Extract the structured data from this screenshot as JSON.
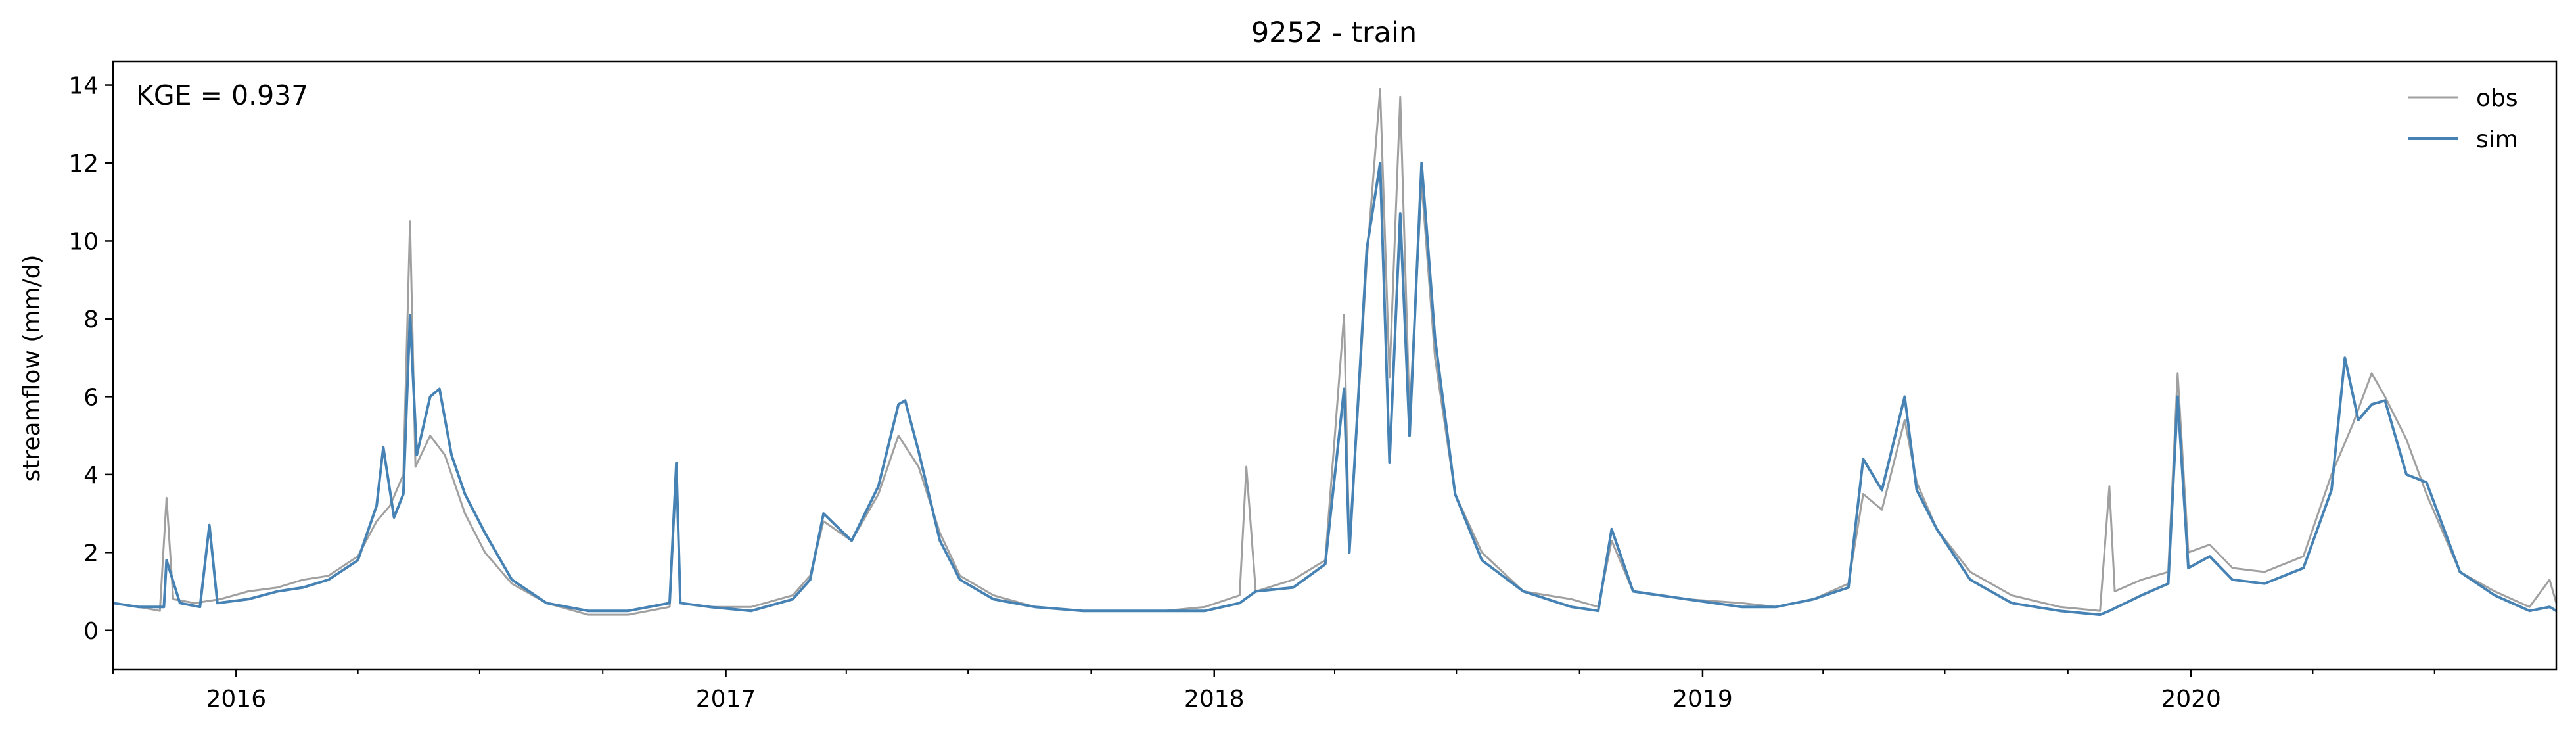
{
  "chart_data": {
    "type": "line",
    "title": "9252 - train",
    "xlabel": "",
    "ylabel": "streamflow (mm/d)",
    "xlim": [
      "2015-10-01",
      "2020-09-30"
    ],
    "ylim": [
      -1,
      14.6
    ],
    "yticks": [
      0,
      2,
      4,
      6,
      8,
      10,
      12,
      14
    ],
    "xticks": [
      {
        "date": "2016-01-01",
        "label": "2016"
      },
      {
        "date": "2017-01-01",
        "label": "2017"
      },
      {
        "date": "2018-01-01",
        "label": "2018"
      },
      {
        "date": "2019-01-01",
        "label": "2019"
      },
      {
        "date": "2020-01-01",
        "label": "2020"
      }
    ],
    "grid": false,
    "legend": "top-right",
    "annotation": "KGE = 0.937",
    "series": [
      {
        "name": "obs",
        "color": "#a0a0a0",
        "points": [
          [
            "2015-10-01",
            0.7
          ],
          [
            "2015-10-20",
            0.6
          ],
          [
            "2015-11-05",
            0.5
          ],
          [
            "2015-11-10",
            3.4
          ],
          [
            "2015-11-15",
            0.8
          ],
          [
            "2015-12-01",
            0.7
          ],
          [
            "2015-12-20",
            0.8
          ],
          [
            "2016-01-10",
            1.0
          ],
          [
            "2016-02-01",
            1.1
          ],
          [
            "2016-02-20",
            1.3
          ],
          [
            "2016-03-10",
            1.4
          ],
          [
            "2016-04-01",
            1.9
          ],
          [
            "2016-04-15",
            2.8
          ],
          [
            "2016-04-25",
            3.2
          ],
          [
            "2016-05-05",
            4.0
          ],
          [
            "2016-05-10",
            10.5
          ],
          [
            "2016-05-14",
            4.2
          ],
          [
            "2016-05-25",
            5.0
          ],
          [
            "2016-06-05",
            4.5
          ],
          [
            "2016-06-20",
            3.0
          ],
          [
            "2016-07-05",
            2.0
          ],
          [
            "2016-07-25",
            1.2
          ],
          [
            "2016-08-20",
            0.7
          ],
          [
            "2016-09-20",
            0.4
          ],
          [
            "2016-10-20",
            0.4
          ],
          [
            "2016-11-20",
            0.6
          ],
          [
            "2016-11-25",
            4.1
          ],
          [
            "2016-11-28",
            0.7
          ],
          [
            "2016-12-20",
            0.6
          ],
          [
            "2017-01-20",
            0.6
          ],
          [
            "2017-02-20",
            0.9
          ],
          [
            "2017-03-05",
            1.4
          ],
          [
            "2017-03-15",
            2.8
          ],
          [
            "2017-04-05",
            2.3
          ],
          [
            "2017-04-25",
            3.5
          ],
          [
            "2017-05-10",
            5.0
          ],
          [
            "2017-05-25",
            4.2
          ],
          [
            "2017-06-10",
            2.5
          ],
          [
            "2017-06-25",
            1.4
          ],
          [
            "2017-07-20",
            0.9
          ],
          [
            "2017-08-20",
            0.6
          ],
          [
            "2017-09-25",
            0.5
          ],
          [
            "2017-10-25",
            0.5
          ],
          [
            "2017-11-25",
            0.5
          ],
          [
            "2017-12-25",
            0.6
          ],
          [
            "2018-01-20",
            0.9
          ],
          [
            "2018-01-25",
            4.2
          ],
          [
            "2018-02-01",
            1.0
          ],
          [
            "2018-03-01",
            1.3
          ],
          [
            "2018-03-25",
            1.8
          ],
          [
            "2018-04-08",
            8.1
          ],
          [
            "2018-04-12",
            2.0
          ],
          [
            "2018-04-25",
            9.5
          ],
          [
            "2018-05-05",
            13.9
          ],
          [
            "2018-05-12",
            6.5
          ],
          [
            "2018-05-20",
            13.7
          ],
          [
            "2018-05-27",
            5.5
          ],
          [
            "2018-06-05",
            11.5
          ],
          [
            "2018-06-15",
            7.0
          ],
          [
            "2018-06-30",
            3.5
          ],
          [
            "2018-07-20",
            2.0
          ],
          [
            "2018-08-20",
            1.0
          ],
          [
            "2018-09-25",
            0.8
          ],
          [
            "2018-10-15",
            0.6
          ],
          [
            "2018-10-25",
            2.3
          ],
          [
            "2018-11-10",
            1.0
          ],
          [
            "2018-12-20",
            0.8
          ],
          [
            "2019-01-30",
            0.7
          ],
          [
            "2019-02-25",
            0.6
          ],
          [
            "2019-03-25",
            0.8
          ],
          [
            "2019-04-20",
            1.2
          ],
          [
            "2019-05-01",
            3.5
          ],
          [
            "2019-05-15",
            3.1
          ],
          [
            "2019-06-01",
            5.4
          ],
          [
            "2019-06-10",
            3.8
          ],
          [
            "2019-06-25",
            2.6
          ],
          [
            "2019-07-20",
            1.5
          ],
          [
            "2019-08-20",
            0.9
          ],
          [
            "2019-09-25",
            0.6
          ],
          [
            "2019-10-25",
            0.5
          ],
          [
            "2019-11-01",
            3.7
          ],
          [
            "2019-11-05",
            1.0
          ],
          [
            "2019-11-25",
            1.3
          ],
          [
            "2019-12-15",
            1.5
          ],
          [
            "2019-12-22",
            6.6
          ],
          [
            "2019-12-30",
            2.0
          ],
          [
            "2020-01-15",
            2.2
          ],
          [
            "2020-02-01",
            1.6
          ],
          [
            "2020-02-25",
            1.5
          ],
          [
            "2020-03-25",
            1.9
          ],
          [
            "2020-04-15",
            4.0
          ],
          [
            "2020-05-01",
            5.3
          ],
          [
            "2020-05-15",
            6.6
          ],
          [
            "2020-05-25",
            6.0
          ],
          [
            "2020-06-10",
            4.9
          ],
          [
            "2020-06-25",
            3.5
          ],
          [
            "2020-07-20",
            1.5
          ],
          [
            "2020-08-15",
            1.0
          ],
          [
            "2020-09-10",
            0.6
          ],
          [
            "2020-09-25",
            1.3
          ],
          [
            "2020-09-30",
            0.7
          ]
        ]
      },
      {
        "name": "sim",
        "color": "#4682b4",
        "points": [
          [
            "2015-10-01",
            0.7
          ],
          [
            "2015-10-20",
            0.6
          ],
          [
            "2015-11-08",
            0.6
          ],
          [
            "2015-11-10",
            1.8
          ],
          [
            "2015-11-20",
            0.7
          ],
          [
            "2015-12-05",
            0.6
          ],
          [
            "2015-12-12",
            2.7
          ],
          [
            "2015-12-18",
            0.7
          ],
          [
            "2016-01-10",
            0.8
          ],
          [
            "2016-02-01",
            1.0
          ],
          [
            "2016-02-20",
            1.1
          ],
          [
            "2016-03-10",
            1.3
          ],
          [
            "2016-04-01",
            1.8
          ],
          [
            "2016-04-15",
            3.2
          ],
          [
            "2016-04-20",
            4.7
          ],
          [
            "2016-04-28",
            2.9
          ],
          [
            "2016-05-05",
            3.5
          ],
          [
            "2016-05-10",
            8.1
          ],
          [
            "2016-05-15",
            4.5
          ],
          [
            "2016-05-25",
            6.0
          ],
          [
            "2016-06-01",
            6.2
          ],
          [
            "2016-06-10",
            4.5
          ],
          [
            "2016-06-20",
            3.5
          ],
          [
            "2016-07-05",
            2.5
          ],
          [
            "2016-07-25",
            1.3
          ],
          [
            "2016-08-20",
            0.7
          ],
          [
            "2016-09-20",
            0.5
          ],
          [
            "2016-10-20",
            0.5
          ],
          [
            "2016-11-20",
            0.7
          ],
          [
            "2016-11-25",
            4.3
          ],
          [
            "2016-11-28",
            0.7
          ],
          [
            "2016-12-20",
            0.6
          ],
          [
            "2017-01-20",
            0.5
          ],
          [
            "2017-02-20",
            0.8
          ],
          [
            "2017-03-05",
            1.3
          ],
          [
            "2017-03-15",
            3.0
          ],
          [
            "2017-04-05",
            2.3
          ],
          [
            "2017-04-25",
            3.7
          ],
          [
            "2017-05-10",
            5.8
          ],
          [
            "2017-05-15",
            5.9
          ],
          [
            "2017-05-25",
            4.6
          ],
          [
            "2017-06-10",
            2.3
          ],
          [
            "2017-06-25",
            1.3
          ],
          [
            "2017-07-20",
            0.8
          ],
          [
            "2017-08-20",
            0.6
          ],
          [
            "2017-09-25",
            0.5
          ],
          [
            "2017-10-25",
            0.5
          ],
          [
            "2017-11-25",
            0.5
          ],
          [
            "2017-12-25",
            0.5
          ],
          [
            "2018-01-20",
            0.7
          ],
          [
            "2018-02-01",
            1.0
          ],
          [
            "2018-03-01",
            1.1
          ],
          [
            "2018-03-25",
            1.7
          ],
          [
            "2018-04-08",
            6.2
          ],
          [
            "2018-04-12",
            2.0
          ],
          [
            "2018-04-25",
            9.8
          ],
          [
            "2018-05-05",
            12.0
          ],
          [
            "2018-05-12",
            4.3
          ],
          [
            "2018-05-20",
            10.7
          ],
          [
            "2018-05-27",
            5.0
          ],
          [
            "2018-06-05",
            12.0
          ],
          [
            "2018-06-15",
            7.5
          ],
          [
            "2018-06-30",
            3.5
          ],
          [
            "2018-07-20",
            1.8
          ],
          [
            "2018-08-20",
            1.0
          ],
          [
            "2018-09-25",
            0.6
          ],
          [
            "2018-10-15",
            0.5
          ],
          [
            "2018-10-25",
            2.6
          ],
          [
            "2018-11-10",
            1.0
          ],
          [
            "2018-12-20",
            0.8
          ],
          [
            "2019-01-30",
            0.6
          ],
          [
            "2019-02-25",
            0.6
          ],
          [
            "2019-03-25",
            0.8
          ],
          [
            "2019-04-20",
            1.1
          ],
          [
            "2019-05-01",
            4.4
          ],
          [
            "2019-05-15",
            3.6
          ],
          [
            "2019-06-01",
            6.0
          ],
          [
            "2019-06-10",
            3.6
          ],
          [
            "2019-06-25",
            2.6
          ],
          [
            "2019-07-20",
            1.3
          ],
          [
            "2019-08-20",
            0.7
          ],
          [
            "2019-09-25",
            0.5
          ],
          [
            "2019-10-25",
            0.4
          ],
          [
            "2019-11-01",
            0.5
          ],
          [
            "2019-11-25",
            0.9
          ],
          [
            "2019-12-15",
            1.2
          ],
          [
            "2019-12-22",
            6.0
          ],
          [
            "2019-12-30",
            1.6
          ],
          [
            "2020-01-15",
            1.9
          ],
          [
            "2020-02-01",
            1.3
          ],
          [
            "2020-02-25",
            1.2
          ],
          [
            "2020-03-25",
            1.6
          ],
          [
            "2020-04-15",
            3.6
          ],
          [
            "2020-04-25",
            7.0
          ],
          [
            "2020-05-05",
            5.4
          ],
          [
            "2020-05-15",
            5.8
          ],
          [
            "2020-05-25",
            5.9
          ],
          [
            "2020-06-10",
            4.0
          ],
          [
            "2020-06-25",
            3.8
          ],
          [
            "2020-07-20",
            1.5
          ],
          [
            "2020-08-15",
            0.9
          ],
          [
            "2020-09-10",
            0.5
          ],
          [
            "2020-09-25",
            0.6
          ],
          [
            "2020-09-30",
            0.5
          ]
        ]
      }
    ]
  }
}
